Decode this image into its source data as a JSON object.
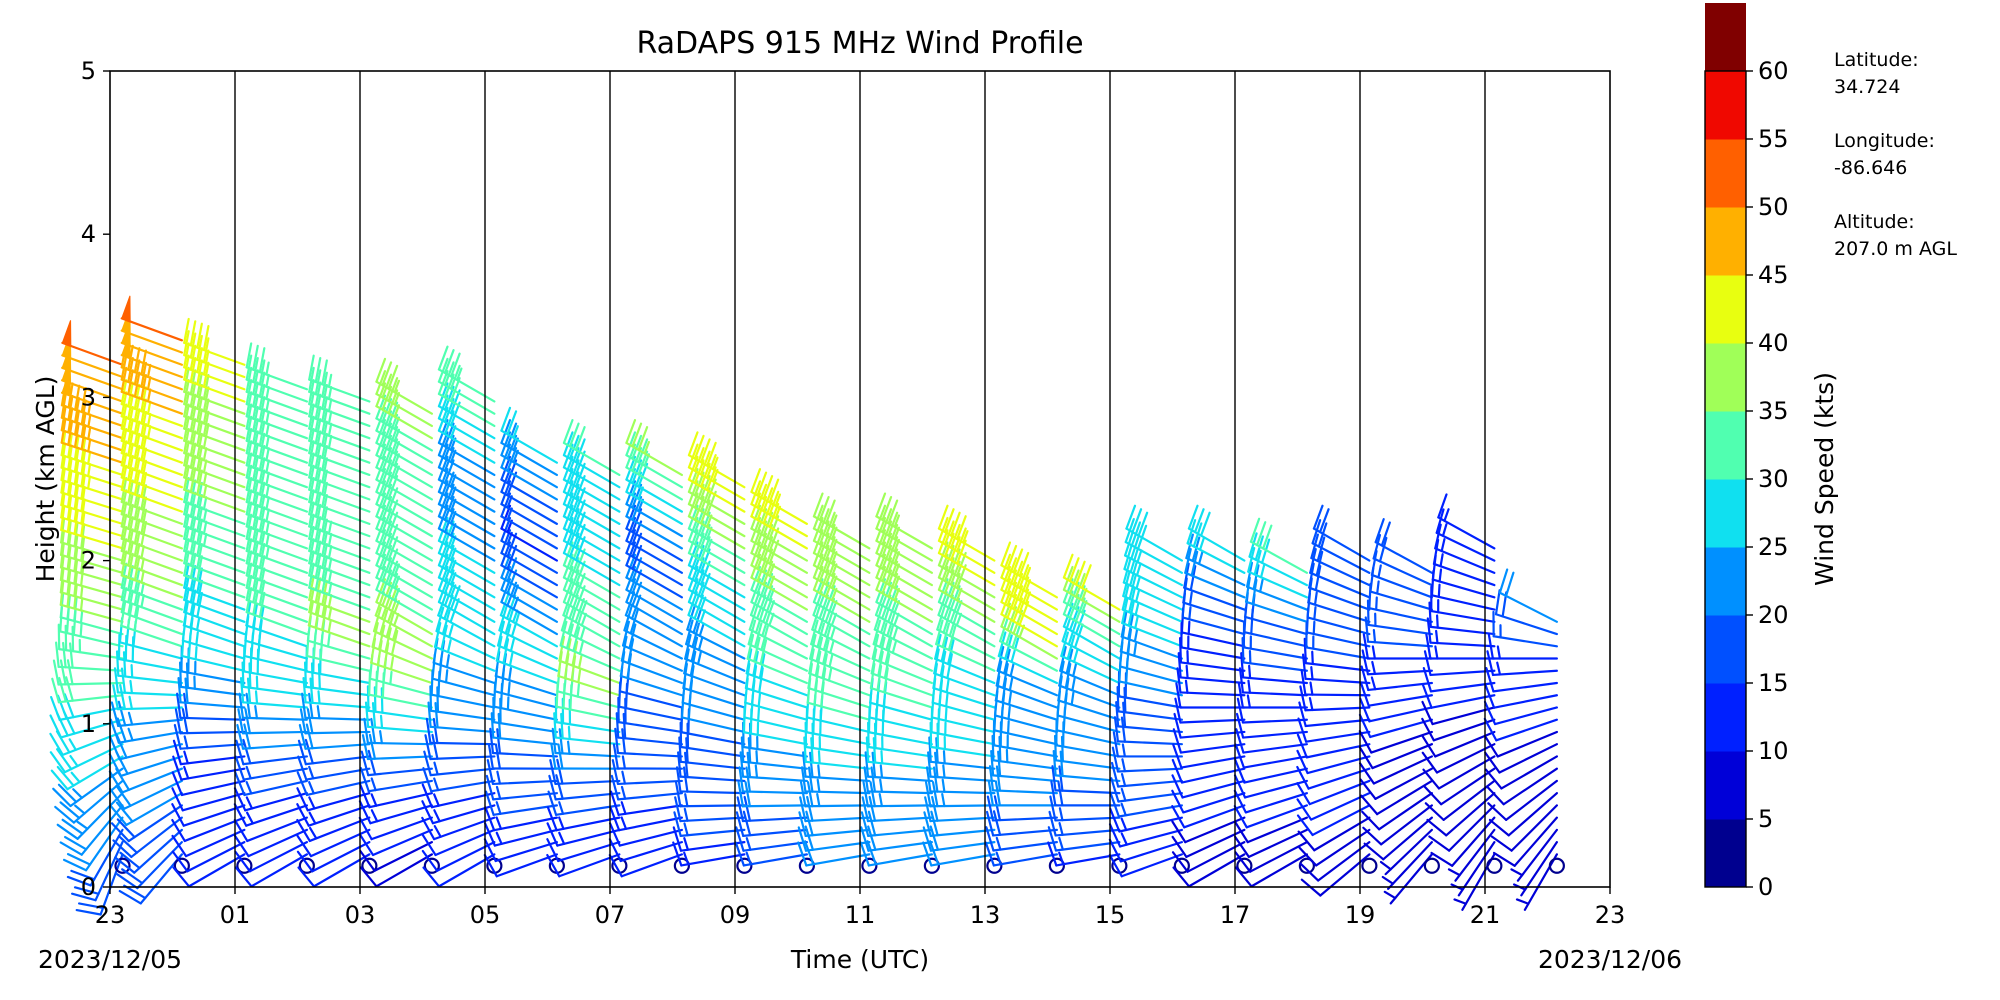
{
  "chart_data": {
    "type": "wind-barb profile",
    "title": "RaDAPS 915 MHz Wind Profile",
    "xlabel": "Time (UTC)",
    "ylabel": "Height (km AGL)",
    "x_tick_labels": [
      "23",
      "01",
      "03",
      "05",
      "07",
      "09",
      "11",
      "13",
      "15",
      "17",
      "19",
      "21",
      "23"
    ],
    "x_date_left": "2023/12/05",
    "x_date_right": "2023/12/06",
    "x_range_hours": [
      23,
      47
    ],
    "y_tick_labels": [
      "0",
      "1",
      "2",
      "3",
      "4",
      "5"
    ],
    "ylim": [
      0,
      5
    ],
    "hourly_vertical_lines": true,
    "colorbar": {
      "label": "Wind Speed (kts)",
      "bounds": [
        0,
        5,
        10,
        15,
        20,
        25,
        30,
        35,
        40,
        45,
        50,
        55,
        60
      ],
      "tick_labels": [
        "0",
        "5",
        "10",
        "15",
        "20",
        "25",
        "30",
        "35",
        "40",
        "45",
        "50",
        "55",
        "60"
      ],
      "colors": [
        "#00008f",
        "#0000d8",
        "#0020ff",
        "#0050ff",
        "#0090ff",
        "#10e0f0",
        "#50ffb0",
        "#a0ff58",
        "#e8ff10",
        "#ffb000",
        "#ff6000",
        "#f00800",
        "#800000"
      ]
    },
    "station_info": [
      {
        "label": "Latitude:",
        "value": "34.724"
      },
      {
        "label": "Longitude:",
        "value": "-86.646"
      },
      {
        "label": "Altitude:",
        "value": "207.0 m AGL"
      }
    ],
    "profiles": [
      {
        "time": 23.2,
        "top_km": 3.2,
        "speeds": [
          [
            0.2,
            18
          ],
          [
            1.0,
            28
          ],
          [
            1.8,
            38
          ],
          [
            2.6,
            45
          ],
          [
            3.2,
            50
          ]
        ],
        "dirs": [
          [
            0.2,
            200
          ],
          [
            1.5,
            285
          ],
          [
            3.2,
            290
          ]
        ]
      },
      {
        "time": 24.15,
        "top_km": 3.35,
        "speeds": [
          [
            0.2,
            18
          ],
          [
            0.9,
            22
          ],
          [
            1.8,
            36
          ],
          [
            2.8,
            44
          ],
          [
            3.3,
            50
          ]
        ],
        "dirs": [
          [
            0.2,
            220
          ],
          [
            1.5,
            290
          ],
          [
            3.3,
            290
          ]
        ]
      },
      {
        "time": 25.15,
        "top_km": 3.25,
        "speeds": [
          [
            0.2,
            10
          ],
          [
            0.7,
            12
          ],
          [
            1.2,
            24
          ],
          [
            2.0,
            33
          ],
          [
            3.2,
            42
          ]
        ],
        "dirs": [
          [
            0.2,
            240
          ],
          [
            1.5,
            290
          ],
          [
            3.2,
            290
          ]
        ]
      },
      {
        "time": 26.15,
        "top_km": 3.05,
        "speeds": [
          [
            0.2,
            10
          ],
          [
            0.6,
            14
          ],
          [
            1.2,
            28
          ],
          [
            2.0,
            33
          ],
          [
            3.0,
            34
          ]
        ],
        "dirs": [
          [
            0.2,
            240
          ],
          [
            1.5,
            290
          ],
          [
            3.0,
            290
          ]
        ]
      },
      {
        "time": 27.15,
        "top_km": 3.0,
        "speeds": [
          [
            0.2,
            10
          ],
          [
            0.7,
            16
          ],
          [
            1.5,
            36
          ],
          [
            2.2,
            32
          ],
          [
            3.0,
            33
          ]
        ],
        "dirs": [
          [
            0.2,
            240
          ],
          [
            1.5,
            290
          ],
          [
            3.0,
            290
          ]
        ]
      },
      {
        "time": 28.15,
        "top_km": 2.95,
        "speeds": [
          [
            0.2,
            8
          ],
          [
            0.6,
            14
          ],
          [
            1.3,
            38
          ],
          [
            2.0,
            30
          ],
          [
            2.9,
            36
          ]
        ],
        "dirs": [
          [
            0.2,
            240
          ],
          [
            1.5,
            300
          ],
          [
            2.9,
            300
          ]
        ]
      },
      {
        "time": 29.15,
        "top_km": 3.0,
        "speeds": [
          [
            0.2,
            10
          ],
          [
            0.8,
            18
          ],
          [
            1.5,
            28
          ],
          [
            2.4,
            22
          ],
          [
            3.0,
            34
          ]
        ],
        "dirs": [
          [
            0.2,
            240
          ],
          [
            1.5,
            300
          ],
          [
            3.0,
            300
          ]
        ]
      },
      {
        "time": 30.15,
        "top_km": 2.65,
        "speeds": [
          [
            0.2,
            10
          ],
          [
            0.8,
            20
          ],
          [
            1.4,
            28
          ],
          [
            2.0,
            14
          ],
          [
            2.6,
            26
          ]
        ],
        "dirs": [
          [
            0.2,
            250
          ],
          [
            1.5,
            300
          ],
          [
            2.6,
            300
          ]
        ]
      },
      {
        "time": 31.15,
        "top_km": 2.55,
        "speeds": [
          [
            0.2,
            10
          ],
          [
            0.7,
            20
          ],
          [
            1.2,
            36
          ],
          [
            2.0,
            28
          ],
          [
            2.5,
            30
          ]
        ],
        "dirs": [
          [
            0.2,
            250
          ],
          [
            1.5,
            300
          ],
          [
            2.5,
            300
          ]
        ]
      },
      {
        "time": 32.15,
        "top_km": 2.55,
        "speeds": [
          [
            0.2,
            10
          ],
          [
            0.6,
            16
          ],
          [
            1.4,
            22
          ],
          [
            2.0,
            18
          ],
          [
            2.5,
            36
          ]
        ],
        "dirs": [
          [
            0.2,
            250
          ],
          [
            1.5,
            300
          ],
          [
            2.5,
            300
          ]
        ]
      },
      {
        "time": 33.15,
        "top_km": 2.45,
        "speeds": [
          [
            0.2,
            14
          ],
          [
            0.6,
            18
          ],
          [
            1.2,
            22
          ],
          [
            1.8,
            30
          ],
          [
            2.4,
            44
          ]
        ],
        "dirs": [
          [
            0.2,
            260
          ],
          [
            1.5,
            300
          ],
          [
            2.4,
            300
          ]
        ]
      },
      {
        "time": 34.15,
        "top_km": 2.25,
        "speeds": [
          [
            0.2,
            16
          ],
          [
            0.6,
            22
          ],
          [
            1.4,
            32
          ],
          [
            2.0,
            40
          ],
          [
            2.2,
            44
          ]
        ],
        "dirs": [
          [
            0.2,
            260
          ],
          [
            1.5,
            300
          ],
          [
            2.2,
            300
          ]
        ]
      },
      {
        "time": 35.15,
        "top_km": 2.1,
        "speeds": [
          [
            0.2,
            20
          ],
          [
            0.6,
            24
          ],
          [
            1.2,
            33
          ],
          [
            1.8,
            36
          ],
          [
            2.1,
            37
          ]
        ],
        "dirs": [
          [
            0.2,
            260
          ],
          [
            1.5,
            300
          ],
          [
            2.1,
            300
          ]
        ]
      },
      {
        "time": 36.15,
        "top_km": 2.1,
        "speeds": [
          [
            0.2,
            20
          ],
          [
            0.6,
            24
          ],
          [
            1.2,
            32
          ],
          [
            1.8,
            37
          ],
          [
            2.1,
            36
          ]
        ],
        "dirs": [
          [
            0.2,
            260
          ],
          [
            1.5,
            300
          ],
          [
            2.1,
            300
          ]
        ]
      },
      {
        "time": 37.15,
        "top_km": 2.05,
        "speeds": [
          [
            0.2,
            20
          ],
          [
            0.6,
            24
          ],
          [
            1.2,
            28
          ],
          [
            1.7,
            38
          ],
          [
            2.0,
            43
          ]
        ],
        "dirs": [
          [
            0.2,
            260
          ],
          [
            1.5,
            300
          ],
          [
            2.0,
            300
          ]
        ]
      },
      {
        "time": 38.15,
        "top_km": 1.8,
        "speeds": [
          [
            0.2,
            16
          ],
          [
            0.6,
            22
          ],
          [
            1.2,
            25
          ],
          [
            1.5,
            42
          ],
          [
            1.8,
            45
          ]
        ],
        "dirs": [
          [
            0.2,
            260
          ],
          [
            1.4,
            300
          ],
          [
            1.8,
            300
          ]
        ]
      },
      {
        "time": 39.15,
        "top_km": 1.75,
        "speeds": [
          [
            0.2,
            14
          ],
          [
            0.6,
            20
          ],
          [
            1.2,
            24
          ],
          [
            1.6,
            36
          ],
          [
            1.75,
            44
          ]
        ],
        "dirs": [
          [
            0.2,
            260
          ],
          [
            1.4,
            300
          ],
          [
            1.75,
            300
          ]
        ]
      },
      {
        "time": 40.15,
        "top_km": 2.0,
        "speeds": [
          [
            0.2,
            10
          ],
          [
            0.5,
            16
          ],
          [
            1.0,
            18
          ],
          [
            1.5,
            26
          ],
          [
            2.0,
            28
          ]
        ],
        "dirs": [
          [
            0.2,
            250
          ],
          [
            1.4,
            290
          ],
          [
            2.0,
            300
          ]
        ]
      },
      {
        "time": 41.15,
        "top_km": 2.0,
        "speeds": [
          [
            0.2,
            8
          ],
          [
            0.5,
            10
          ],
          [
            1.0,
            12
          ],
          [
            1.5,
            14
          ],
          [
            2.0,
            28
          ]
        ],
        "dirs": [
          [
            0.2,
            240
          ],
          [
            1.4,
            280
          ],
          [
            2.0,
            300
          ]
        ]
      },
      {
        "time": 42.15,
        "top_km": 1.95,
        "speeds": [
          [
            0.2,
            8
          ],
          [
            0.5,
            10
          ],
          [
            1.0,
            12
          ],
          [
            1.5,
            18
          ],
          [
            1.95,
            32
          ]
        ],
        "dirs": [
          [
            0.2,
            240
          ],
          [
            1.4,
            280
          ],
          [
            1.95,
            300
          ]
        ]
      },
      {
        "time": 43.15,
        "top_km": 2.0,
        "speeds": [
          [
            0.2,
            8
          ],
          [
            0.5,
            10
          ],
          [
            1.0,
            12
          ],
          [
            1.5,
            16
          ],
          [
            2.0,
            20
          ]
        ],
        "dirs": [
          [
            0.2,
            230
          ],
          [
            1.4,
            280
          ],
          [
            2.0,
            300
          ]
        ]
      },
      {
        "time": 44.15,
        "top_km": 1.95,
        "speeds": [
          [
            0.2,
            6
          ],
          [
            0.5,
            8
          ],
          [
            1.0,
            10
          ],
          [
            1.5,
            16
          ],
          [
            1.95,
            18
          ]
        ],
        "dirs": [
          [
            0.2,
            220
          ],
          [
            1.4,
            270
          ],
          [
            1.95,
            300
          ]
        ]
      },
      {
        "time": 45.15,
        "top_km": 2.1,
        "speeds": [
          [
            0.2,
            6
          ],
          [
            0.5,
            8
          ],
          [
            1.0,
            9
          ],
          [
            1.5,
            14
          ],
          [
            2.1,
            14
          ]
        ],
        "dirs": [
          [
            0.2,
            210
          ],
          [
            1.4,
            270
          ],
          [
            2.1,
            300
          ]
        ]
      },
      {
        "time": 46.15,
        "top_km": 1.65,
        "speeds": [
          [
            0.2,
            6
          ],
          [
            0.5,
            8
          ],
          [
            1.0,
            10
          ],
          [
            1.4,
            14
          ],
          [
            1.65,
            22
          ]
        ],
        "dirs": [
          [
            0.2,
            210
          ],
          [
            1.4,
            270
          ],
          [
            1.65,
            300
          ]
        ]
      }
    ]
  }
}
